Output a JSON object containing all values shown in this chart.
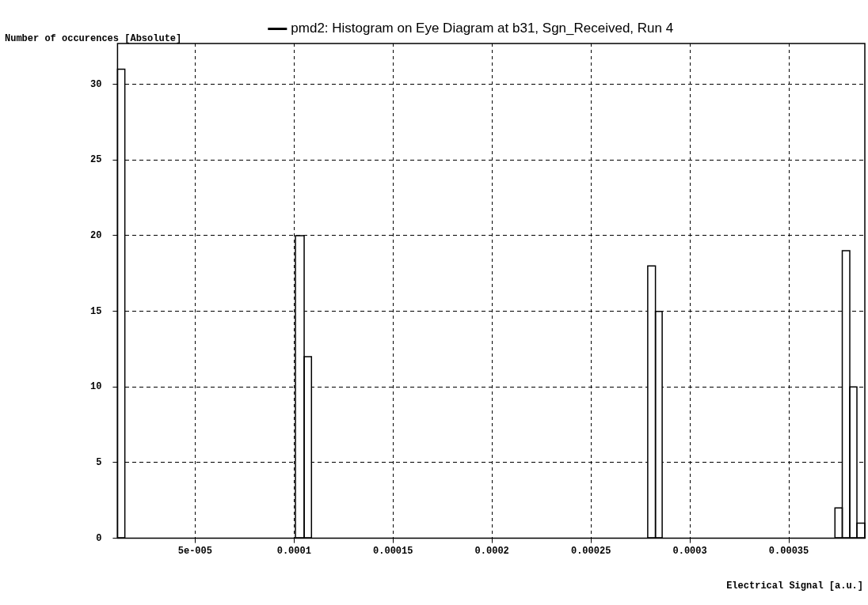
{
  "chart_data": {
    "type": "histogram",
    "ylabel": "Number of occurences [Absolute]",
    "xlabel": "Electrical Signal [a.u.]",
    "bins": [
      1.08e-05,
      1.45e-05,
      0.0001007,
      0.0001051,
      0.0001088,
      0.0002787,
      0.0002826,
      0.000286,
      0.0003733,
      0.000377,
      0.0003808,
      0.0003844,
      0.0003884
    ],
    "series": [
      {
        "name": "pmd2: Histogram on Eye Diagram at b31, Sgn_Received, Run 4",
        "color": "#000000",
        "values": [
          31,
          0,
          20,
          12,
          0,
          18,
          15,
          0,
          2,
          19,
          10,
          1
        ]
      }
    ],
    "xlim": [
      1.08e-05,
      0.0003884
    ],
    "xticks": [
      {
        "value": 5e-05,
        "label": "5e-005"
      },
      0.0001,
      0.00015,
      0.0002,
      0.00025,
      0.0003,
      0.00035
    ],
    "ylim": [
      0,
      32.7
    ],
    "yticks": [
      0,
      5,
      10,
      15,
      20,
      25,
      30
    ],
    "grid": true,
    "legend": "top"
  }
}
